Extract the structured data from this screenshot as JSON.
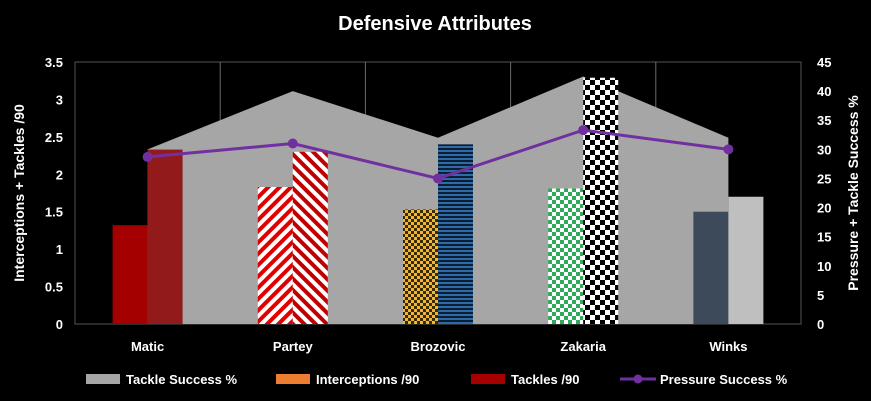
{
  "chart_data": {
    "type": "bar",
    "title": "Defensive Attributes",
    "categories": [
      "Matic",
      "Partey",
      "Brozovic",
      "Zakaria",
      "Winks"
    ],
    "ylabel_left": "Interceptions + Tackles /90",
    "ylabel_right": "Pressure + Tackle Success %",
    "ylim_left": [
      0,
      3.5
    ],
    "yticks_left": [
      "0",
      "0.5",
      "1",
      "1.5",
      "2",
      "2.5",
      "3",
      "3.5"
    ],
    "ylim_right": [
      0,
      45
    ],
    "yticks_right": [
      "0",
      "5",
      "10",
      "15",
      "20",
      "25",
      "30",
      "35",
      "40",
      "45"
    ],
    "grid": "vertical lines between categories",
    "series": [
      {
        "name": "Tackle Success %",
        "kind": "area",
        "axis": "right",
        "color": "#a6a6a6",
        "values": [
          30,
          40,
          32,
          42.5,
          32
        ]
      },
      {
        "name": "Interceptions /90",
        "kind": "bar",
        "axis": "left",
        "color": "#ed7d31",
        "values": [
          1.32,
          1.83,
          1.53,
          1.81,
          1.5
        ]
      },
      {
        "name": "Tackles /90",
        "kind": "bar",
        "axis": "left",
        "color": "#a50000",
        "values": [
          2.33,
          2.3,
          2.4,
          3.29,
          1.7
        ]
      },
      {
        "name": "Pressure Success %",
        "kind": "line",
        "axis": "right",
        "color": "#7030a0",
        "values": [
          28.7,
          31,
          25,
          33.3,
          30
        ]
      }
    ],
    "legend_position": "bottom"
  }
}
